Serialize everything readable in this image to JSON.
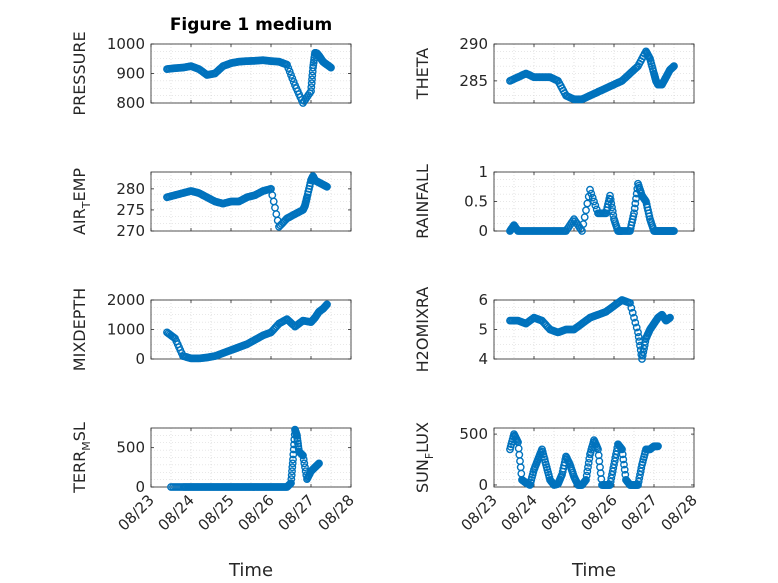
{
  "figure_title": "Figure 1 medium",
  "time_label": "Time",
  "marker_color": "#0072bd",
  "chart_data": [
    {
      "type": "scatter",
      "ylabel": "PRESSURE",
      "ylim": [
        800,
        1000
      ],
      "yticks": [
        800,
        900,
        1000
      ],
      "xlim": [
        0,
        5
      ],
      "xticks": [
        "08/23",
        "08/24",
        "08/25",
        "08/26",
        "08/27",
        "08/28"
      ],
      "series": [
        {
          "x": [
            0.4,
            0.6,
            0.8,
            1.0,
            1.2,
            1.4,
            1.6,
            1.8,
            2.0,
            2.2,
            2.4,
            2.6,
            2.8,
            3.0,
            3.2,
            3.4,
            3.6,
            3.8,
            4.0,
            4.05,
            4.1,
            4.15,
            4.2,
            4.25,
            4.3,
            4.4,
            4.5
          ],
          "y": [
            915,
            918,
            920,
            925,
            915,
            895,
            900,
            925,
            935,
            940,
            942,
            943,
            945,
            942,
            940,
            930,
            860,
            800,
            840,
            920,
            970,
            968,
            960,
            950,
            940,
            930,
            920
          ]
        }
      ]
    },
    {
      "type": "scatter",
      "ylabel": "THETA",
      "ylim": [
        282,
        290
      ],
      "yticks": [
        285,
        290
      ],
      "xlim": [
        0,
        5
      ],
      "xticks": [
        "08/23",
        "08/24",
        "08/25",
        "08/26",
        "08/27",
        "08/28"
      ],
      "series": [
        {
          "x": [
            0.4,
            0.6,
            0.8,
            1.0,
            1.2,
            1.4,
            1.6,
            1.8,
            2.0,
            2.2,
            2.4,
            2.6,
            2.8,
            3.0,
            3.2,
            3.4,
            3.6,
            3.8,
            3.9,
            4.0,
            4.05,
            4.1,
            4.2,
            4.3,
            4.4,
            4.5
          ],
          "y": [
            285,
            285.5,
            286,
            285.5,
            285.5,
            285.5,
            285,
            283,
            282.5,
            282.5,
            283,
            283.5,
            284,
            284.5,
            285,
            286,
            287,
            289,
            288,
            286,
            285,
            284.5,
            284.5,
            285.5,
            286.5,
            287
          ]
        }
      ]
    },
    {
      "type": "scatter",
      "ylabel": "AIR_TEMP",
      "ylim": [
        270,
        284
      ],
      "yticks": [
        270,
        275,
        280
      ],
      "xlim": [
        0,
        5
      ],
      "xticks": [
        "08/23",
        "08/24",
        "08/25",
        "08/26",
        "08/27",
        "08/28"
      ],
      "series": [
        {
          "x": [
            0.4,
            0.6,
            0.8,
            1.0,
            1.2,
            1.4,
            1.6,
            1.8,
            2.0,
            2.2,
            2.4,
            2.6,
            2.8,
            3.0,
            3.2,
            3.4,
            3.6,
            3.8,
            3.85,
            3.9,
            4.0,
            4.05,
            4.1,
            4.2,
            4.3,
            4.4
          ],
          "y": [
            278,
            278.5,
            279,
            279.5,
            279,
            278,
            277,
            276.5,
            277,
            277,
            278,
            278.5,
            279.5,
            280,
            271,
            273,
            274,
            275,
            276,
            278,
            282,
            283,
            282,
            281.5,
            281,
            280.5
          ]
        }
      ]
    },
    {
      "type": "scatter",
      "ylabel": "RAINFALL",
      "ylim": [
        0,
        1
      ],
      "yticks": [
        0,
        0.5,
        1
      ],
      "xlim": [
        0,
        5
      ],
      "xticks": [
        "08/23",
        "08/24",
        "08/25",
        "08/26",
        "08/27",
        "08/28"
      ],
      "series": [
        {
          "x": [
            0.4,
            0.5,
            0.6,
            0.8,
            1.0,
            1.2,
            1.4,
            1.6,
            1.8,
            2.0,
            2.2,
            2.4,
            2.6,
            2.8,
            2.9,
            3.0,
            3.1,
            3.2,
            3.4,
            3.5,
            3.6,
            3.7,
            3.8,
            3.9,
            4.0,
            4.1,
            4.2,
            4.3,
            4.4,
            4.5
          ],
          "y": [
            0,
            0.1,
            0,
            0,
            0,
            0,
            0,
            0,
            0,
            0.2,
            0,
            0.7,
            0.3,
            0.3,
            0.6,
            0.2,
            0,
            0,
            0,
            0.3,
            0.8,
            0.6,
            0.5,
            0.2,
            0,
            0,
            0,
            0,
            0,
            0
          ]
        }
      ]
    },
    {
      "type": "scatter",
      "ylabel": "MIXDEPTH",
      "ylim": [
        0,
        2000
      ],
      "yticks": [
        0,
        1000,
        2000
      ],
      "xlim": [
        0,
        5
      ],
      "xticks": [
        "08/23",
        "08/24",
        "08/25",
        "08/26",
        "08/27",
        "08/28"
      ],
      "series": [
        {
          "x": [
            0.4,
            0.6,
            0.8,
            1.0,
            1.2,
            1.4,
            1.6,
            1.8,
            2.0,
            2.2,
            2.4,
            2.6,
            2.8,
            3.0,
            3.2,
            3.4,
            3.6,
            3.8,
            4.0,
            4.1,
            4.2,
            4.3,
            4.4
          ],
          "y": [
            900,
            700,
            100,
            20,
            20,
            50,
            100,
            200,
            300,
            400,
            500,
            650,
            800,
            900,
            1200,
            1350,
            1100,
            1300,
            1250,
            1400,
            1600,
            1700,
            1850
          ]
        }
      ]
    },
    {
      "type": "scatter",
      "ylabel": "H2OMIXRA",
      "ylim": [
        4,
        6
      ],
      "yticks": [
        4,
        5,
        6
      ],
      "xlim": [
        0,
        5
      ],
      "xticks": [
        "08/23",
        "08/24",
        "08/25",
        "08/26",
        "08/27",
        "08/28"
      ],
      "series": [
        {
          "x": [
            0.4,
            0.6,
            0.8,
            1.0,
            1.2,
            1.4,
            1.6,
            1.8,
            2.0,
            2.2,
            2.4,
            2.6,
            2.8,
            3.0,
            3.2,
            3.4,
            3.6,
            3.7,
            3.8,
            3.9,
            4.0,
            4.1,
            4.2,
            4.3,
            4.4
          ],
          "y": [
            5.3,
            5.3,
            5.2,
            5.4,
            5.3,
            5,
            4.9,
            5,
            5,
            5.2,
            5.4,
            5.5,
            5.6,
            5.8,
            6,
            5.9,
            4.9,
            4,
            4.7,
            5,
            5.2,
            5.4,
            5.5,
            5.3,
            5.4
          ]
        }
      ]
    },
    {
      "type": "scatter",
      "ylabel": "TERR_MSL",
      "ylim": [
        0,
        750
      ],
      "yticks": [
        0,
        500
      ],
      "xlim": [
        0,
        5
      ],
      "xticks": [
        "08/23",
        "08/24",
        "08/25",
        "08/26",
        "08/27",
        "08/28"
      ],
      "series": [
        {
          "x": [
            0.5,
            0.8,
            1.0,
            1.2,
            1.4,
            1.6,
            1.8,
            2.0,
            2.2,
            2.4,
            2.6,
            2.8,
            3.0,
            3.2,
            3.4,
            3.5,
            3.55,
            3.6,
            3.65,
            3.7,
            3.8,
            3.9,
            4.0,
            4.1,
            4.2
          ],
          "y": [
            0,
            0,
            0,
            0,
            0,
            0,
            0,
            0,
            0,
            0,
            0,
            0,
            0,
            0,
            0,
            50,
            350,
            730,
            650,
            450,
            400,
            100,
            200,
            250,
            300
          ]
        }
      ]
    },
    {
      "type": "scatter",
      "ylabel": "SUN_FLUX",
      "ylim": [
        -20,
        560
      ],
      "yticks": [
        0,
        500
      ],
      "xlim": [
        0,
        5
      ],
      "xticks": [
        "08/23",
        "08/24",
        "08/25",
        "08/26",
        "08/27",
        "08/28"
      ],
      "series": [
        {
          "x": [
            0.4,
            0.5,
            0.6,
            0.7,
            0.8,
            0.9,
            1.0,
            1.1,
            1.2,
            1.3,
            1.4,
            1.5,
            1.6,
            1.7,
            1.8,
            1.9,
            2.0,
            2.1,
            2.2,
            2.3,
            2.4,
            2.5,
            2.6,
            2.7,
            2.8,
            2.9,
            3.0,
            3.1,
            3.2,
            3.3,
            3.4,
            3.5,
            3.6,
            3.7,
            3.8,
            3.9,
            4.0,
            4.1
          ],
          "y": [
            350,
            500,
            420,
            50,
            20,
            0,
            150,
            250,
            350,
            200,
            50,
            0,
            10,
            100,
            280,
            200,
            80,
            0,
            0,
            50,
            300,
            440,
            350,
            0,
            0,
            0,
            200,
            400,
            350,
            50,
            0,
            0,
            0,
            200,
            350,
            350,
            380,
            380
          ]
        }
      ]
    }
  ]
}
